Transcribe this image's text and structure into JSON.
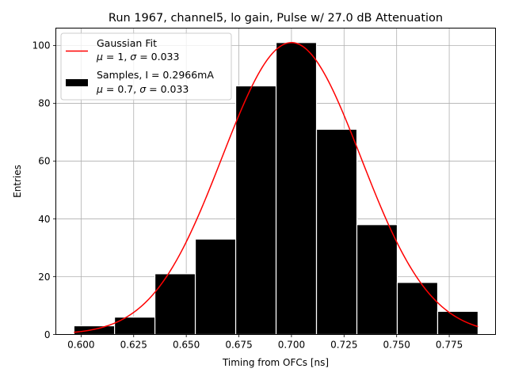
{
  "chart_data": {
    "type": "bar",
    "title": "Run 1967, channel5, lo gain, Pulse w/ 27.0 dB Attenuation",
    "xlabel": "Timing from OFCs [ns]",
    "ylabel": "Entries",
    "xlim": [
      0.588,
      0.797
    ],
    "ylim": [
      0,
      106
    ],
    "grid": true,
    "legend_position": "top-left",
    "x_ticks": [
      "0.600",
      "0.625",
      "0.650",
      "0.675",
      "0.700",
      "0.725",
      "0.750",
      "0.775"
    ],
    "y_ticks": [
      "0",
      "20",
      "40",
      "60",
      "80",
      "100"
    ],
    "histogram": {
      "name": "Samples, I = 0.2966mA",
      "stats": {
        "mu": "0.7",
        "sigma": "0.033"
      },
      "color": "#000000",
      "edge_color": "#ffffff",
      "bin_edges": [
        0.5966,
        0.6159,
        0.6351,
        0.6543,
        0.6735,
        0.6927,
        0.7119,
        0.7311,
        0.7503,
        0.7695,
        0.7887
      ],
      "counts": [
        3,
        6,
        21,
        33,
        86,
        101,
        71,
        38,
        18,
        8
      ]
    },
    "fit": {
      "name": "Gaussian Fit",
      "stats": {
        "mu": "1",
        "sigma": "0.033"
      },
      "color": "#ff0000",
      "amplitude": 101,
      "center": 0.7,
      "width": 0.033
    }
  }
}
